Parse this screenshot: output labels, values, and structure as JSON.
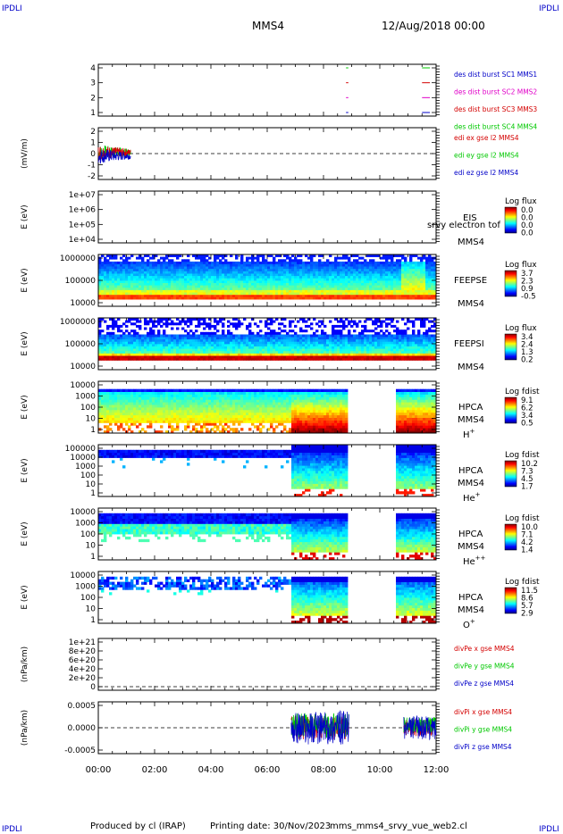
{
  "corner_tags": {
    "tl": "IPDLI",
    "tr": "IPDLI",
    "bl": "IPDLI",
    "br": "IPDLI"
  },
  "header": {
    "spacecraft": "MMS4",
    "date": "12/Aug/2018 00:00"
  },
  "footer": {
    "produced": "Produced by cl (IRAP)",
    "printing": "Printing date: 30/Nov/2023",
    "file": "mms_mms4_srvy_vue_web2.cl"
  },
  "colors": {
    "red": "#d40000",
    "green": "#00c800",
    "blue": "#0000c8",
    "magenta": "#e000c8"
  },
  "chart_data": {
    "type": "multi-panel time series",
    "x_ticks": [
      "00:00",
      "02:00",
      "04:00",
      "06:00",
      "08:00",
      "10:00",
      "12:00"
    ],
    "xlim_hours": [
      0,
      12
    ],
    "panels": [
      {
        "type": "scatter",
        "ylabel": "",
        "yticks": [
          "1",
          "2",
          "3",
          "4"
        ],
        "legend": [
          {
            "label": "des dist burst SC1 MMS1",
            "color": "blue"
          },
          {
            "label": "des dist burst SC2 MMS2",
            "color": "magenta"
          },
          {
            "label": "des dist burst SC3 MMS3",
            "color": "red"
          },
          {
            "label": "des dist burst SC4 MMS4",
            "color": "green"
          }
        ],
        "segments": [
          {
            "sc": 1,
            "t": [
              8.8,
              8.85
            ]
          },
          {
            "sc": 1,
            "t": [
              11.5,
              11.75
            ]
          },
          {
            "sc": 2,
            "t": [
              8.8,
              8.85
            ]
          },
          {
            "sc": 2,
            "t": [
              11.5,
              11.75
            ]
          },
          {
            "sc": 3,
            "t": [
              8.8,
              8.85
            ]
          },
          {
            "sc": 3,
            "t": [
              11.5,
              11.75
            ]
          },
          {
            "sc": 4,
            "t": [
              8.8,
              8.85
            ]
          },
          {
            "sc": 4,
            "t": [
              11.5,
              11.75
            ]
          }
        ]
      },
      {
        "type": "line",
        "ylabel": "(mV/m)",
        "yticks": [
          "-2",
          "-1",
          "0",
          "1",
          "2"
        ],
        "legend": [
          {
            "label": "edi ex gse l2 MMS4",
            "color": "red"
          },
          {
            "label": "edi ey gse l2 MMS4",
            "color": "green"
          },
          {
            "label": "edi ez gse l2 MMS4",
            "color": "blue"
          }
        ],
        "data_interval_hours": [
          0.0,
          1.15
        ],
        "approx_range": [
          -1.3,
          1.1
        ]
      },
      {
        "type": "spectrogram",
        "ylabel": "E (eV)",
        "yticks": [
          "1e+04",
          "1e+05",
          "1e+06",
          "1e+07"
        ],
        "labels": [
          "EIS",
          "MMS4"
        ],
        "overlay": "srvy electron tof",
        "colorbar_title": "Log flux",
        "colorbar_ticks": [
          "0.0",
          "0.0",
          "0.0",
          "0.0"
        ],
        "empty": true
      },
      {
        "type": "spectrogram",
        "ylabel": "E (eV)",
        "yticks": [
          "10000",
          "100000",
          "1000000"
        ],
        "labels": [
          "FEEPSE",
          "MMS4"
        ],
        "colorbar_title": "Log flux",
        "colorbar_ticks": [
          "3.7",
          "2.3",
          "0.9",
          "-0.5"
        ]
      },
      {
        "type": "spectrogram",
        "ylabel": "E (eV)",
        "yticks": [
          "10000",
          "100000",
          "1000000"
        ],
        "labels": [
          "FEEPSI",
          "MMS4"
        ],
        "colorbar_title": "Log flux",
        "colorbar_ticks": [
          "3.4",
          "2.4",
          "1.3",
          "0.2"
        ]
      },
      {
        "type": "spectrogram",
        "ylabel": "E (eV)",
        "yticks": [
          "1",
          "10",
          "100",
          "1000",
          "10000"
        ],
        "labels": [
          "HPCA",
          "MMS4"
        ],
        "species": "H",
        "species_sup": "+",
        "colorbar_title": "Log fdist",
        "colorbar_ticks": [
          "9.1",
          "6.2",
          "3.4",
          "0.5"
        ],
        "gaps_hours": [
          [
            8.85,
            10.6
          ]
        ]
      },
      {
        "type": "spectrogram",
        "ylabel": "E (eV)",
        "yticks": [
          "1",
          "10",
          "100",
          "1000",
          "10000",
          "100000"
        ],
        "labels": [
          "HPCA",
          "MMS4"
        ],
        "species": "He",
        "species_sup": "+",
        "colorbar_title": "Log fdist",
        "colorbar_ticks": [
          "10.2",
          "7.3",
          "4.5",
          "1.7"
        ],
        "gaps_hours": [
          [
            8.85,
            10.6
          ]
        ]
      },
      {
        "type": "spectrogram",
        "ylabel": "E (eV)",
        "yticks": [
          "1",
          "10",
          "100",
          "1000",
          "10000"
        ],
        "labels": [
          "HPCA",
          "MMS4"
        ],
        "species": "He",
        "species_sup": "++",
        "colorbar_title": "Log fdist",
        "colorbar_ticks": [
          "10.0",
          "7.1",
          "4.2",
          "1.4"
        ],
        "gaps_hours": [
          [
            8.85,
            10.6
          ]
        ]
      },
      {
        "type": "spectrogram",
        "ylabel": "E (eV)",
        "yticks": [
          "1",
          "10",
          "100",
          "1000",
          "10000"
        ],
        "labels": [
          "HPCA",
          "MMS4"
        ],
        "species": "O",
        "species_sup": "+",
        "colorbar_title": "Log fdist",
        "colorbar_ticks": [
          "11.5",
          "8.6",
          "5.7",
          "2.9"
        ],
        "gaps_hours": [
          [
            8.85,
            10.6
          ]
        ]
      },
      {
        "type": "line",
        "ylabel": "(nPa/km)",
        "yticks": [
          "0",
          "2e+20",
          "4e+20",
          "6e+20",
          "8e+20",
          "1e+21"
        ],
        "legend": [
          {
            "label": "divPe x gse MMS4",
            "color": "red"
          },
          {
            "label": "divPe y gse MMS4",
            "color": "green"
          },
          {
            "label": "divPe z gse MMS4",
            "color": "blue"
          }
        ]
      },
      {
        "type": "line",
        "ylabel": "(nPa/km)",
        "yticks": [
          "-0.0005",
          "0.0000",
          "0.0005"
        ],
        "legend": [
          {
            "label": "divPi x gse MMS4",
            "color": "red"
          },
          {
            "label": "divPi y gse MMS4",
            "color": "green"
          },
          {
            "label": "divPi z gse MMS4",
            "color": "blue"
          }
        ],
        "data_intervals_hours": [
          [
            6.85,
            8.9
          ],
          [
            10.85,
            12.0
          ]
        ]
      }
    ]
  }
}
